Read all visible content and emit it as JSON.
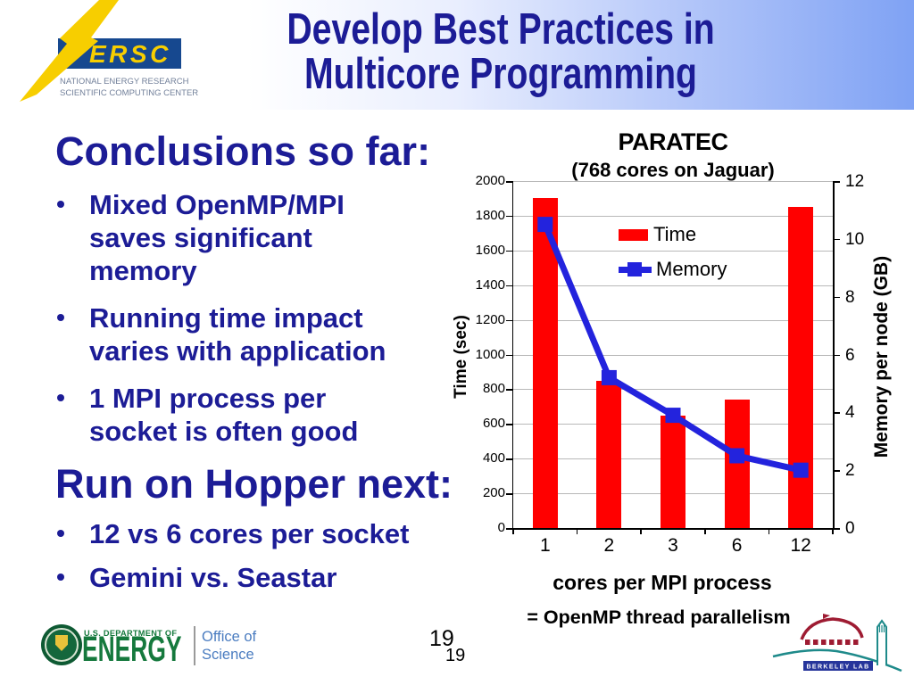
{
  "header": {
    "title_line1": "Develop Best Practices in",
    "title_line2": "Multicore Programming"
  },
  "nersc_logo": {
    "acronym": "ERSC",
    "line1": "NATIONAL ENERGY RESEARCH",
    "line2": "SCIENTIFIC COMPUTING CENTER"
  },
  "left_content": {
    "sections": [
      {
        "heading": "Conclusions so far:",
        "bullets": [
          {
            "lines": [
              "Mixed OpenMP/MPI",
              "saves significant",
              "memory"
            ]
          },
          {
            "lines": [
              "Running time impact",
              "varies with application"
            ]
          },
          {
            "lines": [
              "1 MPI process per",
              "socket is often good"
            ]
          }
        ]
      },
      {
        "heading": "Run on Hopper next:",
        "bullets": [
          {
            "lines": [
              "12 vs 6 cores per socket"
            ]
          },
          {
            "lines": [
              "Gemini vs. Seastar"
            ]
          }
        ]
      }
    ]
  },
  "chart_data": {
    "type": "bar+line",
    "title": "PARATEC",
    "subtitle": "(768 cores on Jaguar)",
    "categories": [
      "1",
      "2",
      "3",
      "6",
      "12"
    ],
    "series": [
      {
        "name": "Time",
        "type": "bar",
        "axis": "left",
        "color": "#ff0000",
        "values": [
          1900,
          850,
          650,
          740,
          1850
        ]
      },
      {
        "name": "Memory",
        "type": "line",
        "axis": "right",
        "color": "#2323dd",
        "values": [
          10.5,
          5.2,
          3.9,
          2.5,
          2.0
        ]
      }
    ],
    "left_axis": {
      "label": "Time (sec)",
      "min": 0,
      "max": 2000,
      "step": 200
    },
    "right_axis": {
      "label": "Memory per node (GB)",
      "min": 0,
      "max": 12,
      "step": 2
    },
    "xlabel": "cores per MPI process",
    "xlabel2": "= OpenMP thread parallelism",
    "grid": true,
    "gridline_color": "#b8b8b8",
    "legend_position": "inside-top"
  },
  "footer": {
    "doe": {
      "department": "U.S. DEPARTMENT OF",
      "energy": "ENERGY",
      "office_line1": "Office of",
      "office_line2": "Science"
    },
    "page_number_large": "19",
    "page_number_small": "19",
    "berkeley_label": "BERKELEY LAB"
  },
  "colors": {
    "title_text": "#1c1c96",
    "band_blue": "#7fa2f4",
    "bar_red": "#ff0000",
    "line_blue": "#2323dd",
    "nersc_blue": "#16488f",
    "nersc_yellow": "#f7ce00",
    "doe_green": "#15793d",
    "office_blue": "#4a7cc0",
    "berkeley_red": "#9e1b32",
    "berkeley_teal": "#1e8a8a",
    "berkeley_banner": "#26359b"
  }
}
